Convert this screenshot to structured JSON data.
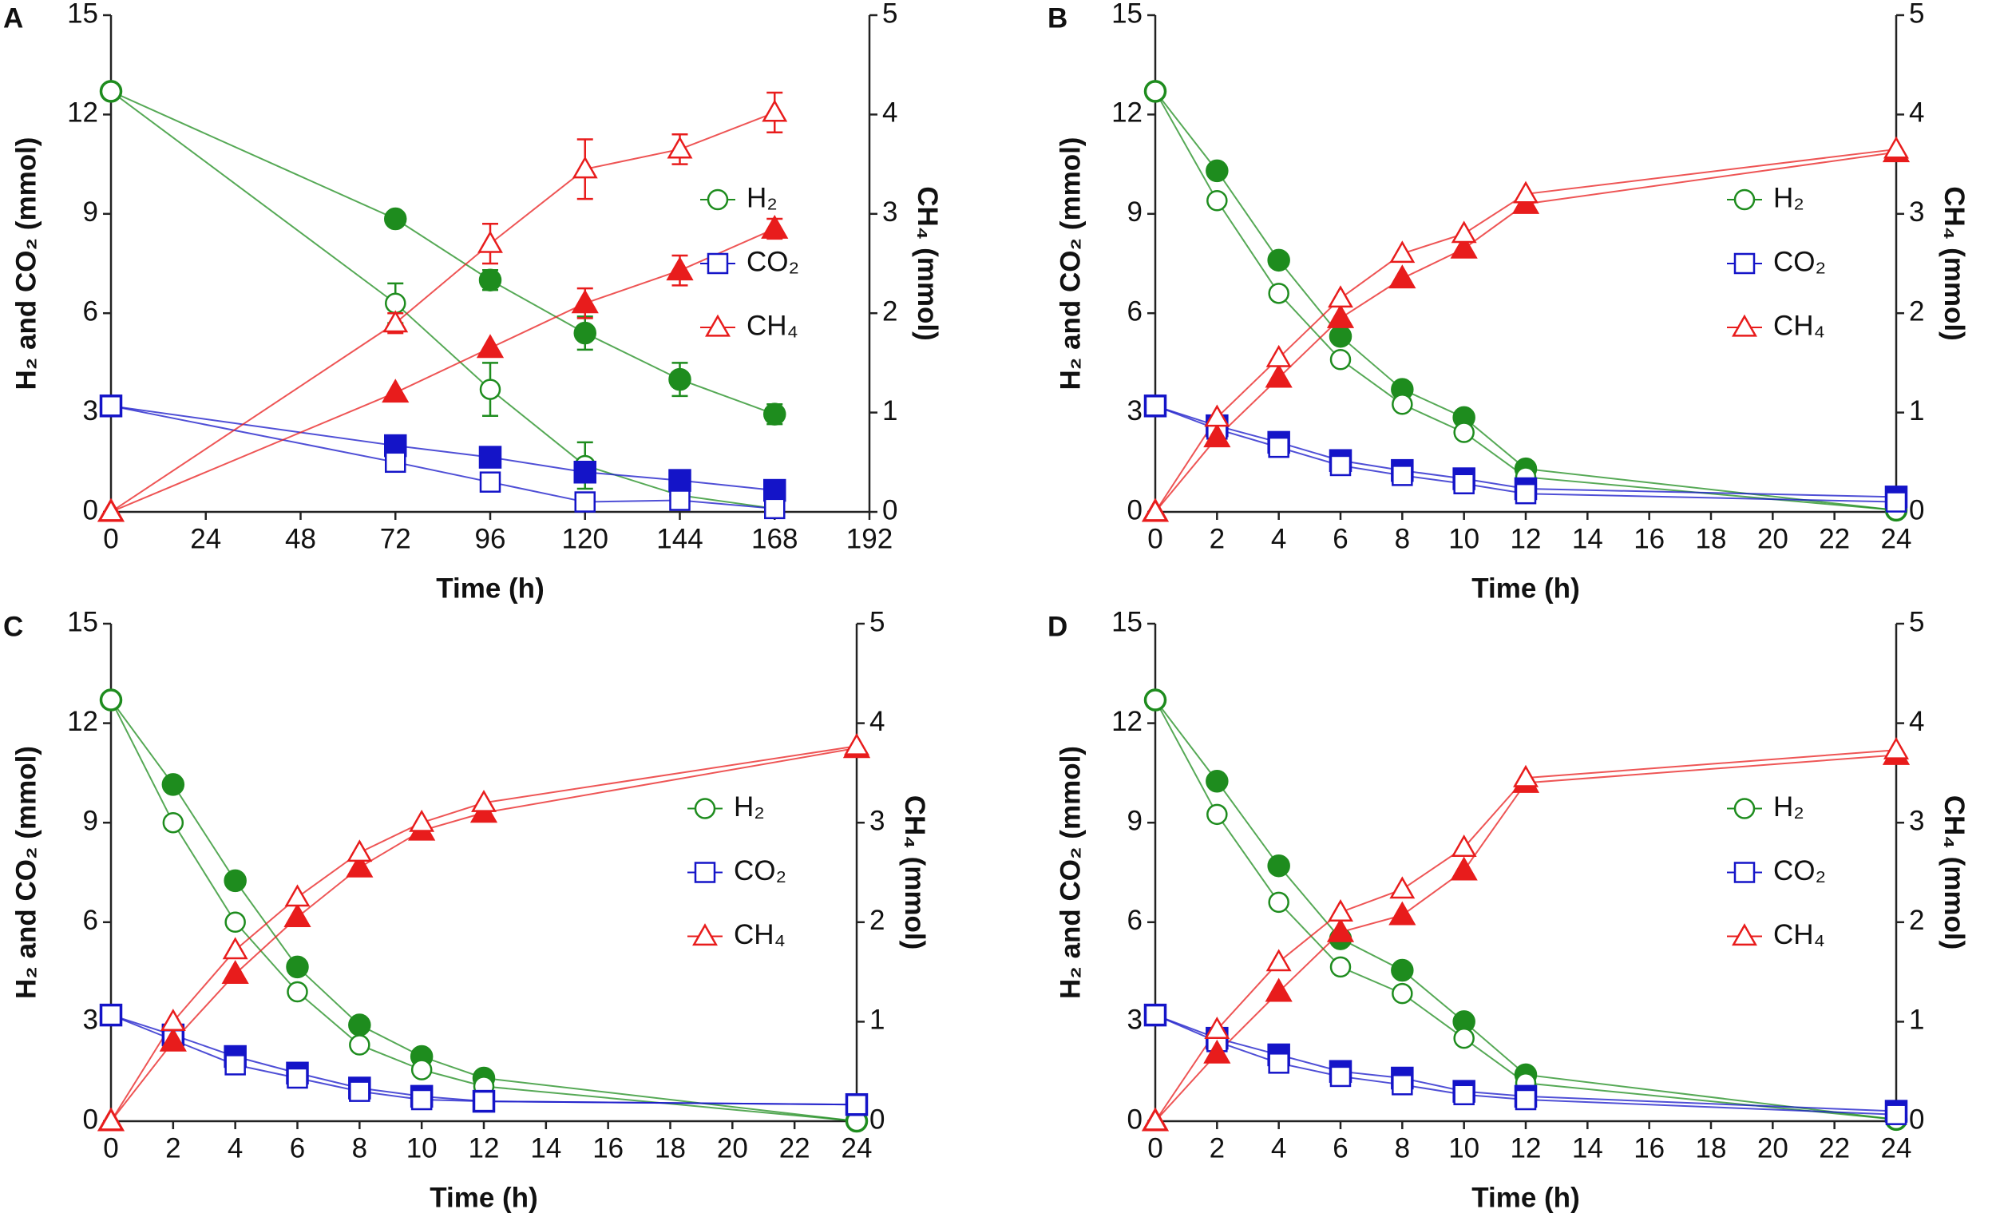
{
  "chart_data": [
    {
      "type": "line",
      "panel_label": "A",
      "x_label": "Time (h)",
      "y_label": "H₂ and CO₂ (mmol)",
      "y2_label": "CH₄ (mmol)",
      "x": [
        0,
        72,
        96,
        120,
        144,
        168
      ],
      "xlim": [
        0,
        192
      ],
      "xticks": [
        0,
        24,
        48,
        72,
        96,
        120,
        144,
        168,
        192
      ],
      "ylim": [
        0,
        15
      ],
      "yticks": [
        0,
        3,
        6,
        9,
        12,
        15
      ],
      "y2lim": [
        0,
        5
      ],
      "y2ticks": [
        0,
        1,
        2,
        3,
        4,
        5
      ],
      "legend_position": "center right",
      "series": [
        {
          "color": "#1e8c1e",
          "marker": "circle",
          "filled": true,
          "values": [
            12.7,
            8.85,
            7.0,
            5.4,
            4.0,
            2.95
          ],
          "errors": [
            null,
            null,
            0.3,
            0.5,
            0.5,
            0.3
          ]
        },
        {
          "name": "H₂",
          "color": "#1e8c1e",
          "marker": "circle",
          "filled": false,
          "values": [
            12.7,
            6.3,
            3.7,
            1.4,
            0.5,
            0.1
          ],
          "errors": [
            null,
            0.6,
            0.8,
            0.7,
            null,
            null
          ]
        },
        {
          "color": "#1414c8",
          "marker": "square",
          "filled": true,
          "values": [
            3.2,
            2.0,
            1.65,
            1.2,
            0.95,
            0.65
          ]
        },
        {
          "name": "CO₂",
          "color": "#1414c8",
          "marker": "square",
          "filled": false,
          "values": [
            3.2,
            1.5,
            0.9,
            0.3,
            0.35,
            0.1
          ]
        },
        {
          "color": "#e81c1c",
          "marker": "triangle",
          "filled": true,
          "axis": "y2",
          "values": [
            0,
            1.2,
            1.65,
            2.1,
            2.43,
            2.85
          ],
          "errors": [
            null,
            null,
            null,
            0.15,
            0.15,
            0.1
          ]
        },
        {
          "name": "CH₄",
          "color": "#e81c1c",
          "marker": "triangle",
          "filled": false,
          "axis": "y2",
          "values": [
            0,
            1.9,
            2.7,
            3.45,
            3.65,
            4.02
          ],
          "errors": [
            null,
            0.1,
            0.2,
            0.3,
            0.15,
            0.2
          ]
        }
      ]
    },
    {
      "type": "line",
      "panel_label": "B",
      "x_label": "Time (h)",
      "y_label": "H₂ and CO₂ (mmol)",
      "y2_label": "CH₄ (mmol)",
      "x": [
        0,
        2,
        4,
        6,
        8,
        10,
        12,
        24
      ],
      "xlim": [
        0,
        24
      ],
      "xticks": [
        0,
        2,
        4,
        6,
        8,
        10,
        12,
        14,
        16,
        18,
        20,
        22,
        24
      ],
      "ylim": [
        0,
        15
      ],
      "yticks": [
        0,
        3,
        6,
        9,
        12,
        15
      ],
      "y2lim": [
        0,
        5
      ],
      "y2ticks": [
        0,
        1,
        2,
        3,
        4,
        5
      ],
      "legend_position": "center right",
      "series": [
        {
          "color": "#1e8c1e",
          "marker": "circle",
          "filled": true,
          "values": [
            12.7,
            10.3,
            7.6,
            5.3,
            3.7,
            2.85,
            1.3,
            0.05
          ]
        },
        {
          "name": "H₂",
          "color": "#1e8c1e",
          "marker": "circle",
          "filled": false,
          "values": [
            12.7,
            9.4,
            6.6,
            4.6,
            3.25,
            2.4,
            1.05,
            0.05
          ]
        },
        {
          "color": "#1414c8",
          "marker": "square",
          "filled": true,
          "values": [
            3.2,
            2.6,
            2.1,
            1.55,
            1.25,
            1.0,
            0.7,
            0.45
          ]
        },
        {
          "name": "CO₂",
          "color": "#1414c8",
          "marker": "square",
          "filled": false,
          "values": [
            3.2,
            2.5,
            1.95,
            1.4,
            1.1,
            0.85,
            0.55,
            0.3
          ]
        },
        {
          "color": "#e81c1c",
          "marker": "triangle",
          "filled": true,
          "axis": "y2",
          "values": [
            0,
            0.75,
            1.35,
            1.95,
            2.35,
            2.65,
            3.1,
            3.62
          ]
        },
        {
          "name": "CH₄",
          "color": "#e81c1c",
          "marker": "triangle",
          "filled": false,
          "axis": "y2",
          "values": [
            0,
            0.95,
            1.55,
            2.15,
            2.6,
            2.8,
            3.2,
            3.65
          ]
        }
      ]
    },
    {
      "type": "line",
      "panel_label": "C",
      "x_label": "Time (h)",
      "y_label": "H₂ and CO₂ (mmol)",
      "y2_label": "CH₄ (mmol)",
      "x": [
        0,
        2,
        4,
        6,
        8,
        10,
        12,
        24
      ],
      "xlim": [
        0,
        24
      ],
      "xticks": [
        0,
        2,
        4,
        6,
        8,
        10,
        12,
        14,
        16,
        18,
        20,
        22,
        24
      ],
      "ylim": [
        0,
        15
      ],
      "yticks": [
        0,
        3,
        6,
        9,
        12,
        15
      ],
      "y2lim": [
        0,
        5
      ],
      "y2ticks": [
        0,
        1,
        2,
        3,
        4,
        5
      ],
      "legend_position": "center right",
      "series": [
        {
          "color": "#1e8c1e",
          "marker": "circle",
          "filled": true,
          "values": [
            12.7,
            10.15,
            7.25,
            4.65,
            2.9,
            1.95,
            1.3,
            0
          ]
        },
        {
          "name": "H₂",
          "color": "#1e8c1e",
          "marker": "circle",
          "filled": false,
          "values": [
            12.7,
            9.0,
            6.0,
            3.9,
            2.3,
            1.55,
            1.05,
            0
          ]
        },
        {
          "color": "#1414c8",
          "marker": "square",
          "filled": true,
          "values": [
            3.2,
            2.6,
            1.95,
            1.45,
            1.0,
            0.75,
            0.6,
            0.5
          ]
        },
        {
          "name": "CO₂",
          "color": "#1414c8",
          "marker": "square",
          "filled": false,
          "values": [
            3.2,
            2.45,
            1.7,
            1.3,
            0.9,
            0.65,
            0.6,
            0.5
          ]
        },
        {
          "color": "#e81c1c",
          "marker": "triangle",
          "filled": true,
          "axis": "y2",
          "values": [
            0,
            0.8,
            1.48,
            2.05,
            2.55,
            2.92,
            3.1,
            3.75
          ]
        },
        {
          "name": "CH₄",
          "color": "#e81c1c",
          "marker": "triangle",
          "filled": false,
          "axis": "y2",
          "values": [
            0,
            1.0,
            1.72,
            2.25,
            2.7,
            3.0,
            3.2,
            3.77
          ]
        }
      ]
    },
    {
      "type": "line",
      "panel_label": "D",
      "x_label": "Time (h)",
      "y_label": "H₂ and CO₂ (mmol)",
      "y2_label": "CH₄ (mmol)",
      "x": [
        0,
        2,
        4,
        6,
        8,
        10,
        12,
        24
      ],
      "xlim": [
        0,
        24
      ],
      "xticks": [
        0,
        2,
        4,
        6,
        8,
        10,
        12,
        14,
        16,
        18,
        20,
        22,
        24
      ],
      "ylim": [
        0,
        15
      ],
      "yticks": [
        0,
        3,
        6,
        9,
        12,
        15
      ],
      "y2lim": [
        0,
        5
      ],
      "y2ticks": [
        0,
        1,
        2,
        3,
        4,
        5
      ],
      "legend_position": "center right",
      "series": [
        {
          "color": "#1e8c1e",
          "marker": "circle",
          "filled": true,
          "values": [
            12.7,
            10.25,
            7.7,
            5.5,
            4.55,
            3.0,
            1.4,
            0.05
          ]
        },
        {
          "name": "H₂",
          "color": "#1e8c1e",
          "marker": "circle",
          "filled": false,
          "values": [
            12.7,
            9.25,
            6.6,
            4.65,
            3.85,
            2.5,
            1.15,
            0.05
          ]
        },
        {
          "color": "#1414c8",
          "marker": "square",
          "filled": true,
          "values": [
            3.2,
            2.5,
            2.0,
            1.5,
            1.3,
            0.9,
            0.75,
            0.3
          ]
        },
        {
          "name": "CO₂",
          "color": "#1414c8",
          "marker": "square",
          "filled": false,
          "values": [
            3.2,
            2.4,
            1.75,
            1.35,
            1.1,
            0.8,
            0.65,
            0.2
          ]
        },
        {
          "color": "#e81c1c",
          "marker": "triangle",
          "filled": true,
          "axis": "y2",
          "values": [
            0,
            0.68,
            1.3,
            1.9,
            2.07,
            2.52,
            3.4,
            3.68
          ]
        },
        {
          "name": "CH₄",
          "color": "#e81c1c",
          "marker": "triangle",
          "filled": false,
          "axis": "y2",
          "values": [
            0,
            0.92,
            1.6,
            2.1,
            2.33,
            2.75,
            3.45,
            3.73
          ]
        }
      ]
    }
  ]
}
